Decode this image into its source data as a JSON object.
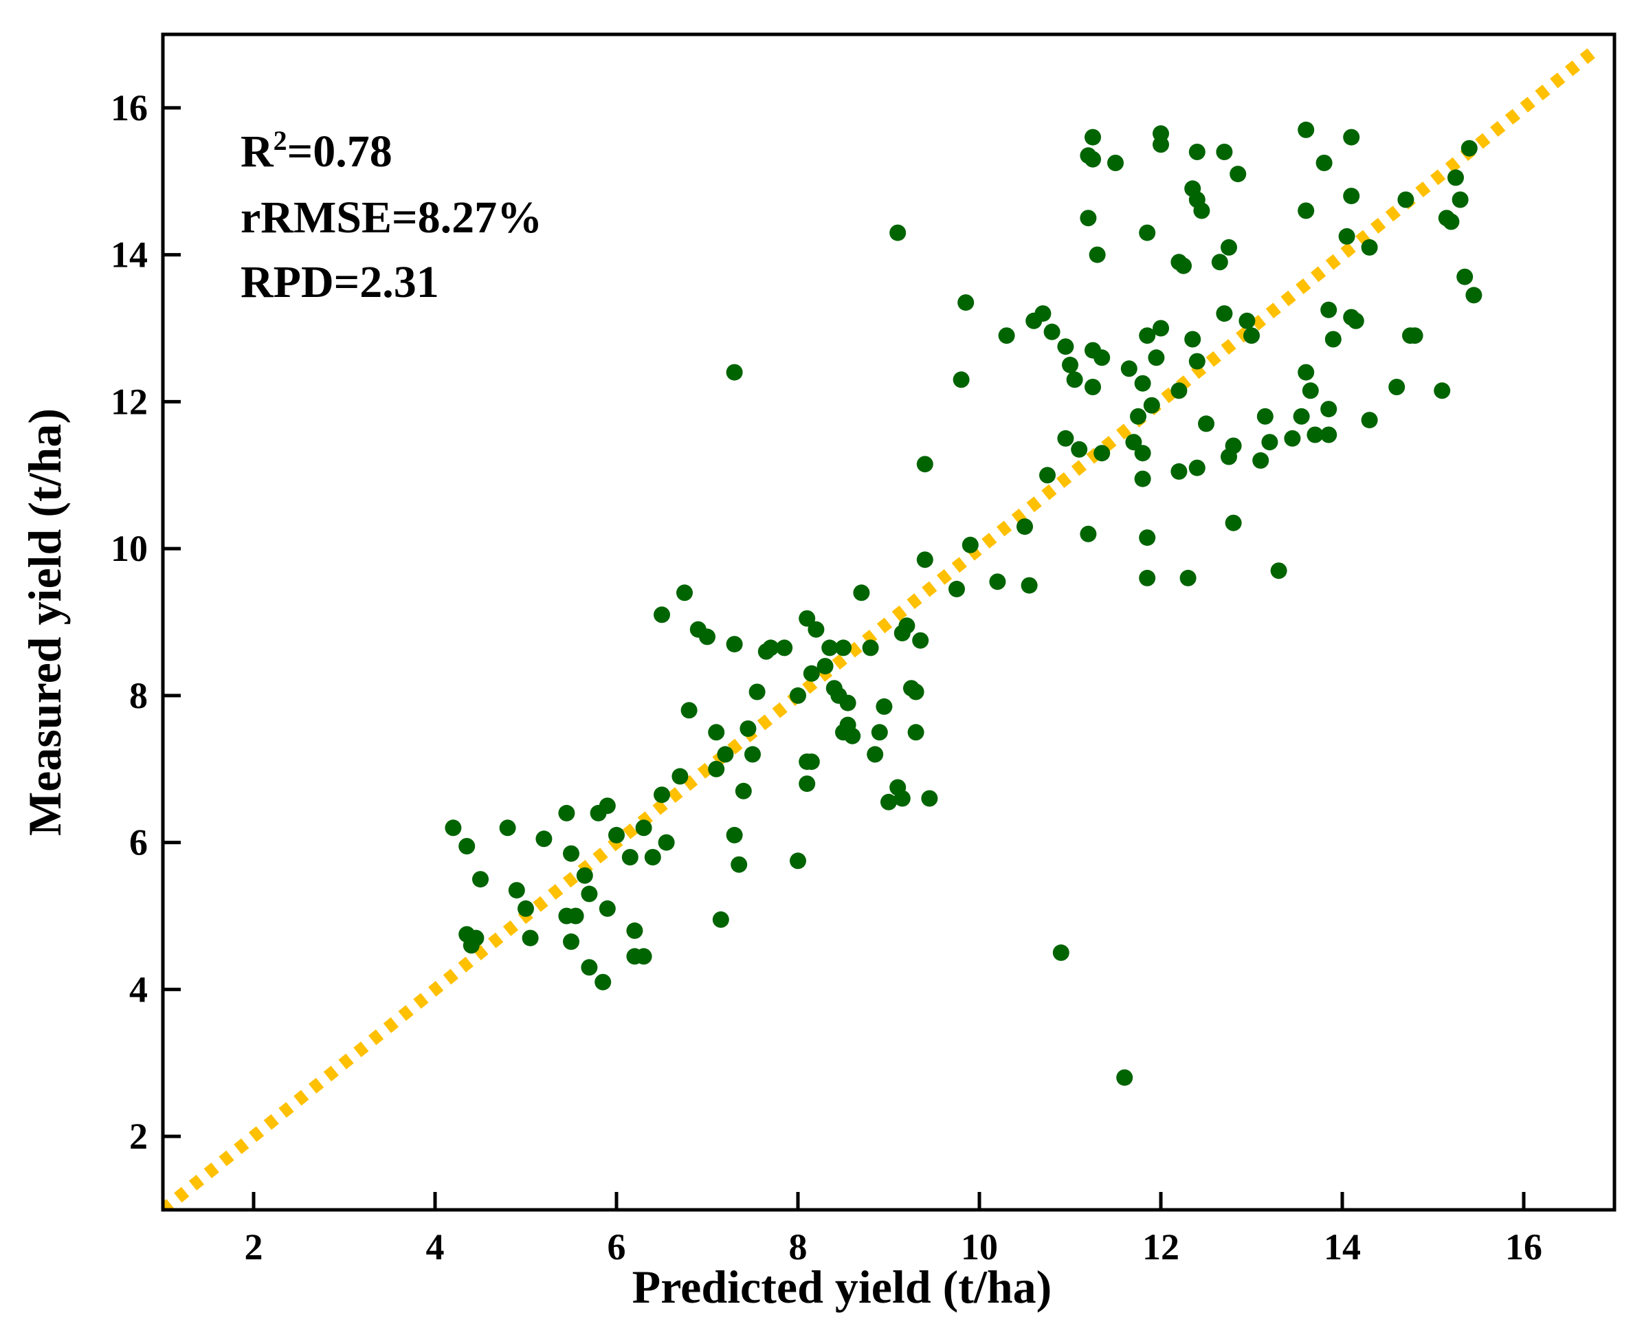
{
  "chart_data": {
    "type": "scatter",
    "xlabel": "Predicted yield (t/ha)",
    "ylabel": "Measured yield (t/ha)",
    "xlim": [
      1,
      17
    ],
    "ylim": [
      1,
      17
    ],
    "xticks": [
      "2",
      "4",
      "6",
      "8",
      "10",
      "12",
      "14",
      "16"
    ],
    "yticks": [
      "2",
      "4",
      "6",
      "8",
      "10",
      "12",
      "14",
      "16"
    ],
    "annotations": {
      "r2_prefix": "R",
      "r2_sup": "2",
      "r2_value": "=0.78",
      "rrmse": "rRMSE=8.27%",
      "rpd": "RPD=2.31"
    },
    "reference_line": {
      "style": "dotted",
      "color": "#FFC000",
      "from": [
        1,
        1
      ],
      "to": [
        16.8,
        16.8
      ]
    },
    "point_color": "#006400",
    "points": [
      [
        4.2,
        6.2
      ],
      [
        4.35,
        5.95
      ],
      [
        4.35,
        4.75
      ],
      [
        4.45,
        4.7
      ],
      [
        4.4,
        4.6
      ],
      [
        4.5,
        5.5
      ],
      [
        4.8,
        6.2
      ],
      [
        4.9,
        5.35
      ],
      [
        5.0,
        5.1
      ],
      [
        5.05,
        4.7
      ],
      [
        5.2,
        6.05
      ],
      [
        5.45,
        6.4
      ],
      [
        5.5,
        5.85
      ],
      [
        5.45,
        5.0
      ],
      [
        5.5,
        4.65
      ],
      [
        5.55,
        5.0
      ],
      [
        5.65,
        5.55
      ],
      [
        5.7,
        5.3
      ],
      [
        5.7,
        4.3
      ],
      [
        5.8,
        6.4
      ],
      [
        5.85,
        4.1
      ],
      [
        5.9,
        6.5
      ],
      [
        5.9,
        5.1
      ],
      [
        6.0,
        6.1
      ],
      [
        6.15,
        5.8
      ],
      [
        6.2,
        4.8
      ],
      [
        6.2,
        4.45
      ],
      [
        6.3,
        4.45
      ],
      [
        6.3,
        6.2
      ],
      [
        6.4,
        5.8
      ],
      [
        6.5,
        6.65
      ],
      [
        6.55,
        6.0
      ],
      [
        6.5,
        9.1
      ],
      [
        6.7,
        6.9
      ],
      [
        6.75,
        9.4
      ],
      [
        6.8,
        7.8
      ],
      [
        6.9,
        8.9
      ],
      [
        7.0,
        8.8
      ],
      [
        7.1,
        7.5
      ],
      [
        7.1,
        7.0
      ],
      [
        7.15,
        4.95
      ],
      [
        7.2,
        7.2
      ],
      [
        7.3,
        8.7
      ],
      [
        7.3,
        6.1
      ],
      [
        7.35,
        5.7
      ],
      [
        7.4,
        6.7
      ],
      [
        7.45,
        7.55
      ],
      [
        7.5,
        7.2
      ],
      [
        7.3,
        12.4
      ],
      [
        7.55,
        8.05
      ],
      [
        7.65,
        8.6
      ],
      [
        7.7,
        8.65
      ],
      [
        7.85,
        8.65
      ],
      [
        8.0,
        8.0
      ],
      [
        8.0,
        5.75
      ],
      [
        8.1,
        7.1
      ],
      [
        8.1,
        6.8
      ],
      [
        8.15,
        7.1
      ],
      [
        8.1,
        9.05
      ],
      [
        8.15,
        8.3
      ],
      [
        8.2,
        8.9
      ],
      [
        8.3,
        8.4
      ],
      [
        8.35,
        8.65
      ],
      [
        8.4,
        8.1
      ],
      [
        8.45,
        8.0
      ],
      [
        8.5,
        8.65
      ],
      [
        8.5,
        7.5
      ],
      [
        8.55,
        7.9
      ],
      [
        8.55,
        7.6
      ],
      [
        8.6,
        7.45
      ],
      [
        8.7,
        9.4
      ],
      [
        8.8,
        8.65
      ],
      [
        8.85,
        7.2
      ],
      [
        8.9,
        7.5
      ],
      [
        8.95,
        7.85
      ],
      [
        9.0,
        6.55
      ],
      [
        9.1,
        6.75
      ],
      [
        9.15,
        8.85
      ],
      [
        9.15,
        6.6
      ],
      [
        9.2,
        8.95
      ],
      [
        9.25,
        8.1
      ],
      [
        9.3,
        7.5
      ],
      [
        9.3,
        8.05
      ],
      [
        9.35,
        8.75
      ],
      [
        9.4,
        9.85
      ],
      [
        9.45,
        6.6
      ],
      [
        9.1,
        14.3
      ],
      [
        9.4,
        11.15
      ],
      [
        9.75,
        9.45
      ],
      [
        9.8,
        12.3
      ],
      [
        9.85,
        13.35
      ],
      [
        9.9,
        10.05
      ],
      [
        10.2,
        9.55
      ],
      [
        10.3,
        12.9
      ],
      [
        10.5,
        10.3
      ],
      [
        10.55,
        9.5
      ],
      [
        10.6,
        13.1
      ],
      [
        10.7,
        13.2
      ],
      [
        10.75,
        11.0
      ],
      [
        10.8,
        12.95
      ],
      [
        10.9,
        4.5
      ],
      [
        10.95,
        11.5
      ],
      [
        10.95,
        12.75
      ],
      [
        11.0,
        12.5
      ],
      [
        11.05,
        12.3
      ],
      [
        11.1,
        11.35
      ],
      [
        11.2,
        10.2
      ],
      [
        11.2,
        14.5
      ],
      [
        11.2,
        15.35
      ],
      [
        11.25,
        15.3
      ],
      [
        11.25,
        15.6
      ],
      [
        11.25,
        12.7
      ],
      [
        11.25,
        12.2
      ],
      [
        11.3,
        14.0
      ],
      [
        11.35,
        12.6
      ],
      [
        11.35,
        11.3
      ],
      [
        11.5,
        15.25
      ],
      [
        11.6,
        2.8
      ],
      [
        11.65,
        12.45
      ],
      [
        11.7,
        11.45
      ],
      [
        11.75,
        11.8
      ],
      [
        11.8,
        12.25
      ],
      [
        11.8,
        10.95
      ],
      [
        11.8,
        11.3
      ],
      [
        11.85,
        10.15
      ],
      [
        11.85,
        9.6
      ],
      [
        11.85,
        14.3
      ],
      [
        11.85,
        12.9
      ],
      [
        11.9,
        11.95
      ],
      [
        11.95,
        12.6
      ],
      [
        12.0,
        13.0
      ],
      [
        12.0,
        15.65
      ],
      [
        12.0,
        15.5
      ],
      [
        12.2,
        13.9
      ],
      [
        12.2,
        12.15
      ],
      [
        12.2,
        11.05
      ],
      [
        12.25,
        13.85
      ],
      [
        12.3,
        9.6
      ],
      [
        12.35,
        12.85
      ],
      [
        12.35,
        14.9
      ],
      [
        12.4,
        14.75
      ],
      [
        12.4,
        15.4
      ],
      [
        12.4,
        12.55
      ],
      [
        12.4,
        11.1
      ],
      [
        12.45,
        14.6
      ],
      [
        12.5,
        11.7
      ],
      [
        12.65,
        13.9
      ],
      [
        12.7,
        15.4
      ],
      [
        12.7,
        13.2
      ],
      [
        12.75,
        14.1
      ],
      [
        12.75,
        11.25
      ],
      [
        12.8,
        11.4
      ],
      [
        12.8,
        10.35
      ],
      [
        12.85,
        15.1
      ],
      [
        12.95,
        13.1
      ],
      [
        13.0,
        12.9
      ],
      [
        13.1,
        11.2
      ],
      [
        13.15,
        11.8
      ],
      [
        13.2,
        11.45
      ],
      [
        13.3,
        9.7
      ],
      [
        13.45,
        11.5
      ],
      [
        13.55,
        11.8
      ],
      [
        13.6,
        15.7
      ],
      [
        13.6,
        14.6
      ],
      [
        13.6,
        12.4
      ],
      [
        13.65,
        12.15
      ],
      [
        13.7,
        11.55
      ],
      [
        13.8,
        15.25
      ],
      [
        13.85,
        11.55
      ],
      [
        13.85,
        11.9
      ],
      [
        13.85,
        13.25
      ],
      [
        13.9,
        12.85
      ],
      [
        14.05,
        14.25
      ],
      [
        14.1,
        13.15
      ],
      [
        14.1,
        14.8
      ],
      [
        14.1,
        15.6
      ],
      [
        14.15,
        13.1
      ],
      [
        14.3,
        14.1
      ],
      [
        14.3,
        11.75
      ],
      [
        14.6,
        12.2
      ],
      [
        14.7,
        14.75
      ],
      [
        14.75,
        12.9
      ],
      [
        14.8,
        12.9
      ],
      [
        15.1,
        12.15
      ],
      [
        15.15,
        14.5
      ],
      [
        15.2,
        14.45
      ],
      [
        15.25,
        15.05
      ],
      [
        15.3,
        14.75
      ],
      [
        15.35,
        13.7
      ],
      [
        15.4,
        15.45
      ],
      [
        15.45,
        13.45
      ]
    ]
  }
}
